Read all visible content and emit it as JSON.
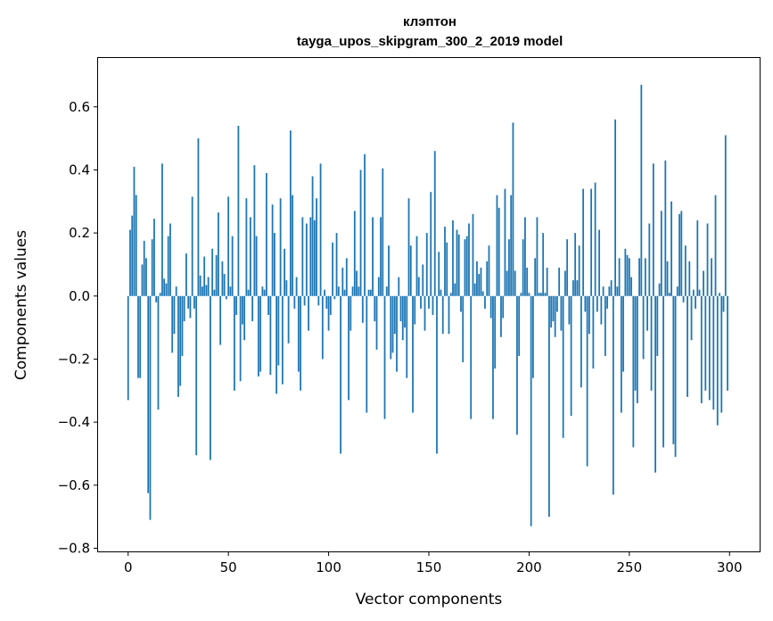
{
  "chart_data": {
    "type": "bar",
    "title": "клэптон",
    "subtitle": "tayga_upos_skipgram_300_2_2019 model",
    "xlabel": "Vector components",
    "ylabel": "Components values",
    "xlim": [
      -15,
      315
    ],
    "ylim": [
      -0.81,
      0.755
    ],
    "xticks": [
      0,
      50,
      100,
      150,
      200,
      250,
      300
    ],
    "yticks": [
      -0.8,
      -0.6,
      -0.4,
      -0.2,
      0.0,
      0.2,
      0.4,
      0.6
    ],
    "ytick_labels": [
      "−0.8",
      "−0.6",
      "−0.4",
      "−0.2",
      "0.0",
      "0.2",
      "0.4",
      "0.6"
    ],
    "grid": false,
    "bar_color": "#1f77b4",
    "x": [
      0,
      1,
      2,
      3,
      4,
      5,
      6,
      7,
      8,
      9,
      10,
      11,
      12,
      13,
      14,
      15,
      16,
      17,
      18,
      19,
      20,
      21,
      22,
      23,
      24,
      25,
      26,
      27,
      28,
      29,
      30,
      31,
      32,
      33,
      34,
      35,
      36,
      37,
      38,
      39,
      40,
      41,
      42,
      43,
      44,
      45,
      46,
      47,
      48,
      49,
      50,
      51,
      52,
      53,
      54,
      55,
      56,
      57,
      58,
      59,
      60,
      61,
      62,
      63,
      64,
      65,
      66,
      67,
      68,
      69,
      70,
      71,
      72,
      73,
      74,
      75,
      76,
      77,
      78,
      79,
      80,
      81,
      82,
      83,
      84,
      85,
      86,
      87,
      88,
      89,
      90,
      91,
      92,
      93,
      94,
      95,
      96,
      97,
      98,
      99,
      100,
      101,
      102,
      103,
      104,
      105,
      106,
      107,
      108,
      109,
      110,
      111,
      112,
      113,
      114,
      115,
      116,
      117,
      118,
      119,
      120,
      121,
      122,
      123,
      124,
      125,
      126,
      127,
      128,
      129,
      130,
      131,
      132,
      133,
      134,
      135,
      136,
      137,
      138,
      139,
      140,
      141,
      142,
      143,
      144,
      145,
      146,
      147,
      148,
      149,
      150,
      151,
      152,
      153,
      154,
      155,
      156,
      157,
      158,
      159,
      160,
      161,
      162,
      163,
      164,
      165,
      166,
      167,
      168,
      169,
      170,
      171,
      172,
      173,
      174,
      175,
      176,
      177,
      178,
      179,
      180,
      181,
      182,
      183,
      184,
      185,
      186,
      187,
      188,
      189,
      190,
      191,
      192,
      193,
      194,
      195,
      196,
      197,
      198,
      199,
      200,
      201,
      202,
      203,
      204,
      205,
      206,
      207,
      208,
      209,
      210,
      211,
      212,
      213,
      214,
      215,
      216,
      217,
      218,
      219,
      220,
      221,
      222,
      223,
      224,
      225,
      226,
      227,
      228,
      229,
      230,
      231,
      232,
      233,
      234,
      235,
      236,
      237,
      238,
      239,
      240,
      241,
      242,
      243,
      244,
      245,
      246,
      247,
      248,
      249,
      250,
      251,
      252,
      253,
      254,
      255,
      256,
      257,
      258,
      259,
      260,
      261,
      262,
      263,
      264,
      265,
      266,
      267,
      268,
      269,
      270,
      271,
      272,
      273,
      274,
      275,
      276,
      277,
      278,
      279,
      280,
      281,
      282,
      283,
      284,
      285,
      286,
      287,
      288,
      289,
      290,
      291,
      292,
      293,
      294,
      295,
      296,
      297,
      298,
      299
    ],
    "values": [
      -0.33,
      0.21,
      0.255,
      0.41,
      0.32,
      -0.26,
      -0.26,
      0.1,
      0.175,
      0.12,
      -0.625,
      -0.71,
      0.18,
      0.245,
      -0.02,
      -0.36,
      0.01,
      0.42,
      0.055,
      0.04,
      0.19,
      0.23,
      -0.18,
      -0.12,
      0.03,
      -0.32,
      -0.285,
      -0.19,
      -0.08,
      0.135,
      -0.04,
      -0.07,
      0.315,
      -0.04,
      -0.505,
      0.5,
      0.065,
      0.03,
      0.125,
      0.035,
      0.06,
      -0.52,
      0.15,
      0.02,
      0.13,
      0.265,
      -0.155,
      0.11,
      0.07,
      -0.01,
      0.315,
      0.03,
      0.19,
      -0.3,
      -0.06,
      0.54,
      -0.27,
      -0.09,
      -0.14,
      0.31,
      0.02,
      0.25,
      -0.08,
      0.415,
      0.19,
      -0.255,
      -0.24,
      0.03,
      0.02,
      0.39,
      -0.06,
      -0.25,
      0.29,
      0.2,
      -0.31,
      -0.22,
      0.31,
      -0.28,
      0.15,
      0.05,
      -0.15,
      0.525,
      0.32,
      -0.04,
      0.06,
      -0.24,
      -0.3,
      0.25,
      -0.03,
      0.23,
      -0.11,
      0.25,
      0.38,
      0.24,
      0.31,
      -0.03,
      0.42,
      -0.2,
      0.02,
      -0.04,
      -0.11,
      -0.06,
      0.17,
      -0.01,
      0.2,
      0.03,
      -0.5,
      0.09,
      0.02,
      0.12,
      -0.33,
      -0.11,
      0.03,
      0.27,
      0.08,
      0.03,
      0.4,
      -0.085,
      0.45,
      -0.37,
      0.02,
      0.02,
      0.25,
      -0.08,
      -0.17,
      0.06,
      0.25,
      0.405,
      -0.39,
      0.03,
      0.16,
      -0.2,
      -0.18,
      -0.12,
      -0.24,
      0.06,
      -0.08,
      -0.14,
      -0.1,
      -0.26,
      0.31,
      0.16,
      -0.37,
      -0.09,
      0.19,
      0.06,
      -0.04,
      0.1,
      -0.11,
      0.2,
      -0.04,
      0.33,
      -0.06,
      0.46,
      -0.5,
      0.14,
      0.02,
      -0.12,
      0.22,
      0.17,
      -0.12,
      0.01,
      0.24,
      0.04,
      0.21,
      0.195,
      -0.05,
      -0.21,
      0.18,
      0.19,
      0.23,
      -0.39,
      0.26,
      0.04,
      0.11,
      0.07,
      0.09,
      0.015,
      -0.04,
      0.11,
      0.16,
      -0.07,
      -0.39,
      -0.23,
      0.32,
      0.28,
      -0.13,
      -0.07,
      0.34,
      0.08,
      0.18,
      0.32,
      0.55,
      0.08,
      -0.44,
      -0.19,
      0.01,
      0.18,
      0.25,
      0.09,
      0.01,
      -0.73,
      -0.26,
      0.12,
      0.25,
      0.01,
      0.01,
      0.2,
      0.01,
      0.09,
      -0.7,
      -0.1,
      -0.08,
      -0.13,
      -0.05,
      0.09,
      -0.11,
      -0.45,
      0.08,
      0.18,
      -0.09,
      -0.38,
      0.05,
      0.2,
      0.05,
      0.16,
      -0.29,
      0.34,
      -0.05,
      -0.54,
      -0.12,
      0.34,
      -0.23,
      0.36,
      -0.05,
      0.21,
      -0.09,
      0.03,
      -0.19,
      -0.04,
      0.03,
      0.05,
      -0.63,
      0.56,
      0.03,
      0.12,
      -0.37,
      -0.24,
      0.15,
      0.13,
      0.12,
      0.06,
      -0.48,
      -0.3,
      -0.34,
      0.12,
      0.67,
      -0.2,
      0.12,
      -0.11,
      0.23,
      -0.3,
      0.42,
      -0.56,
      -0.19,
      0.04,
      0.27,
      -0.48,
      0.43,
      0.11,
      0.01,
      0.3,
      -0.47,
      -0.51,
      0.03,
      0.26,
      0.27,
      -0.02,
      0.16,
      -0.32,
      0.11,
      -0.14,
      0.02,
      -0.04,
      0.24,
      0.02,
      -0.34,
      0.08,
      -0.3,
      0.23,
      -0.33,
      0.12,
      -0.36,
      0.32,
      -0.41,
      0.01,
      -0.37,
      -0.05,
      0.51,
      -0.3
    ]
  }
}
